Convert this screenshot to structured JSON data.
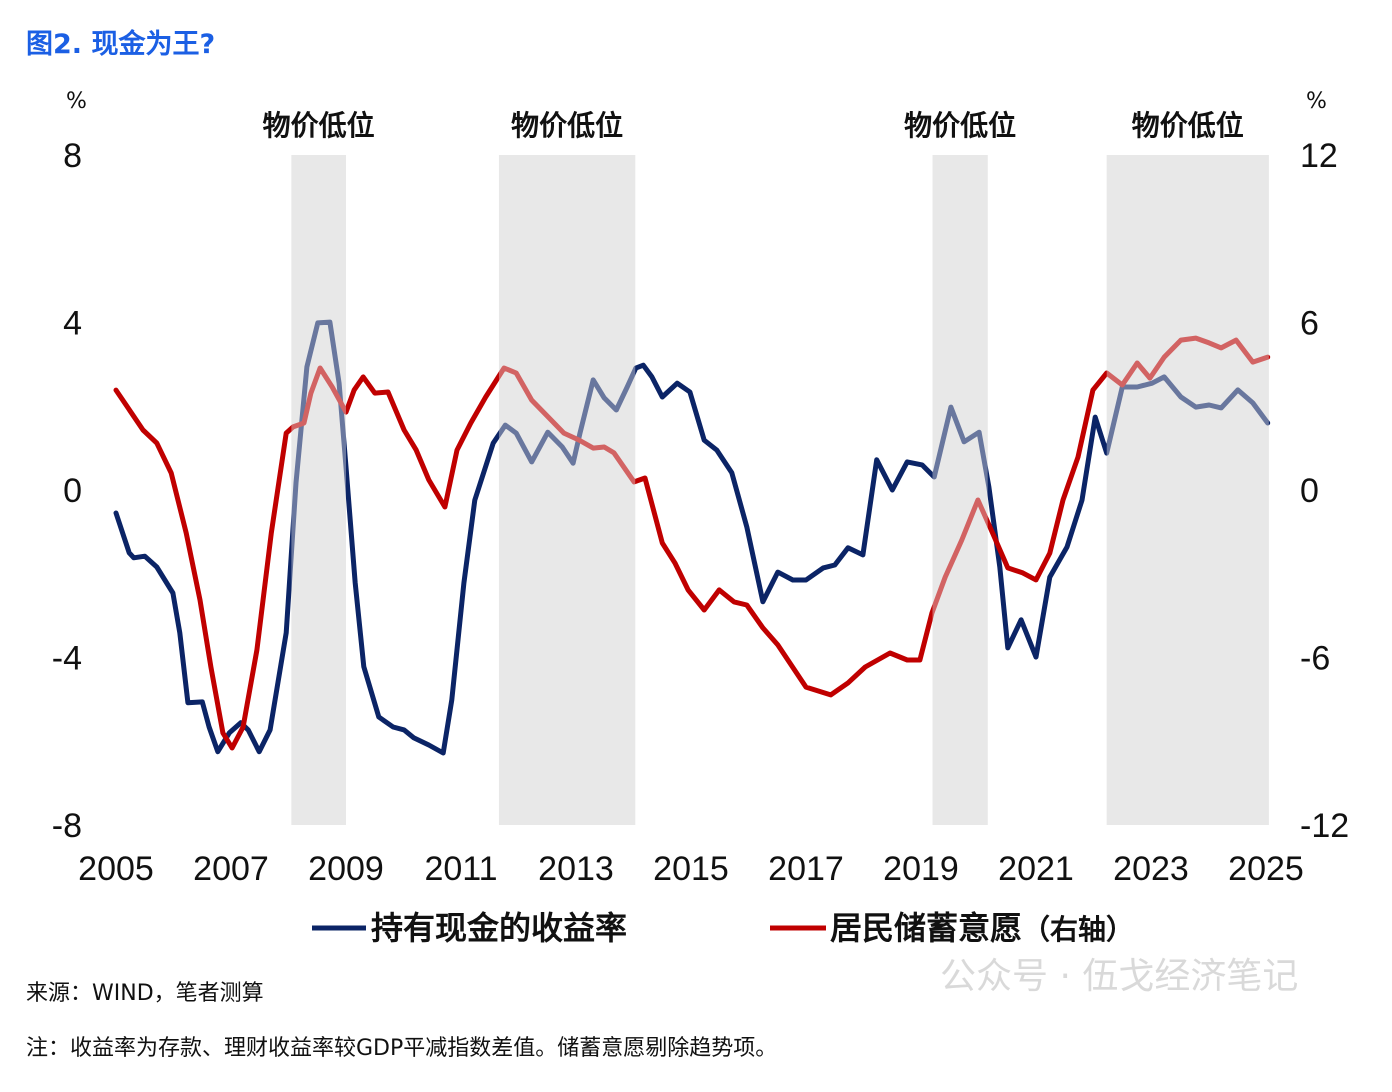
{
  "title": "图2. 现金为王?",
  "colors": {
    "title": "#1b5fe4",
    "blue": "#0b2466",
    "red": "#c00000",
    "band": "#e6e6e6"
  },
  "chart_data": {
    "type": "line",
    "title": "图2. 现金为王?",
    "left_axis": {
      "unit": "%",
      "ylim": [
        -8,
        8
      ],
      "ticks": [
        8,
        4,
        0,
        -4,
        -8
      ],
      "tick_labels": [
        "8",
        "4",
        "0",
        "-4",
        "-8"
      ]
    },
    "right_axis": {
      "unit": "%",
      "ylim": [
        -12,
        12
      ],
      "ticks": [
        12,
        6,
        0,
        -6,
        -12
      ],
      "tick_labels": [
        "12",
        "6",
        "0",
        "-6",
        "-12"
      ]
    },
    "x_axis": {
      "xlim": [
        2005,
        2025
      ],
      "ticks": [
        2005,
        2007,
        2009,
        2011,
        2013,
        2015,
        2017,
        2019,
        2021,
        2023,
        2025
      ],
      "tick_labels": [
        "2005",
        "2007",
        "2009",
        "2011",
        "2013",
        "2015",
        "2017",
        "2019",
        "2021",
        "2023",
        "2025"
      ]
    },
    "grid": false,
    "legend_position": "bottom",
    "shaded_periods": [
      {
        "label": "物价低位",
        "start": 2008.05,
        "end": 2009.0
      },
      {
        "label": "物价低位",
        "start": 2011.66,
        "end": 2014.03
      },
      {
        "label": "物价低位",
        "start": 2019.2,
        "end": 2020.16
      },
      {
        "label": "物价低位",
        "start": 2022.23,
        "end": 2025.05
      }
    ],
    "series": [
      {
        "name": "持有现金的收益率",
        "axis": "left",
        "x": [
          2005.0,
          2005.23,
          2005.31,
          2005.5,
          2005.71,
          2005.99,
          2006.11,
          2006.25,
          2006.5,
          2006.62,
          2006.77,
          2006.97,
          2007.17,
          2007.3,
          2007.49,
          2007.68,
          2007.96,
          2008.13,
          2008.32,
          2008.51,
          2008.72,
          2008.88,
          2009.0,
          2009.16,
          2009.31,
          2009.57,
          2009.82,
          2010.01,
          2010.18,
          2010.44,
          2010.69,
          2010.84,
          2011.05,
          2011.24,
          2011.56,
          2011.77,
          2011.96,
          2012.23,
          2012.51,
          2012.76,
          2012.95,
          2013.07,
          2013.3,
          2013.49,
          2013.7,
          2013.89,
          2014.04,
          2014.17,
          2014.32,
          2014.5,
          2014.76,
          2014.98,
          2015.23,
          2015.45,
          2015.71,
          2015.97,
          2016.25,
          2016.51,
          2016.77,
          2017.0,
          2017.3,
          2017.5,
          2017.73,
          2017.99,
          2018.23,
          2018.5,
          2018.76,
          2019.02,
          2019.23,
          2019.52,
          2019.75,
          2020.01,
          2020.18,
          2020.37,
          2020.51,
          2020.74,
          2021.0,
          2021.24,
          2021.54,
          2021.8,
          2022.03,
          2022.23,
          2022.5,
          2022.76,
          2023.02,
          2023.23,
          2023.52,
          2023.78,
          2024.01,
          2024.22,
          2024.51,
          2024.77,
          2025.03
        ],
        "values": [
          -0.55,
          -1.5,
          -1.62,
          -1.58,
          -1.84,
          -2.46,
          -3.41,
          -5.08,
          -5.06,
          -5.66,
          -6.25,
          -5.8,
          -5.56,
          -5.73,
          -6.25,
          -5.73,
          -3.41,
          0.17,
          2.94,
          3.99,
          4.01,
          2.55,
          0.55,
          -2.22,
          -4.22,
          -5.42,
          -5.66,
          -5.73,
          -5.92,
          -6.09,
          -6.28,
          -5.01,
          -2.22,
          -0.24,
          1.12,
          1.55,
          1.36,
          0.67,
          1.38,
          1.03,
          0.64,
          1.36,
          2.63,
          2.2,
          1.91,
          2.46,
          2.91,
          2.98,
          2.7,
          2.22,
          2.55,
          2.34,
          1.19,
          0.95,
          0.41,
          -0.88,
          -2.67,
          -1.96,
          -2.15,
          -2.15,
          -1.86,
          -1.79,
          -1.38,
          -1.55,
          0.72,
          0.0,
          0.67,
          0.6,
          0.31,
          1.98,
          1.15,
          1.38,
          0.07,
          -1.84,
          -3.77,
          -3.1,
          -3.99,
          -2.08,
          -1.36,
          -0.24,
          1.74,
          0.88,
          2.46,
          2.46,
          2.55,
          2.7,
          2.22,
          1.98,
          2.03,
          1.96,
          2.39,
          2.08,
          1.6
        ]
      },
      {
        "name": "居民储蓄意愿（右轴）",
        "axis": "right",
        "x": [
          2005.0,
          2005.47,
          2005.71,
          2005.96,
          2006.22,
          2006.46,
          2006.65,
          2006.86,
          2007.02,
          2007.21,
          2007.45,
          2007.7,
          2007.96,
          2008.08,
          2008.27,
          2008.39,
          2008.55,
          2008.76,
          2009.0,
          2009.14,
          2009.3,
          2009.5,
          2009.73,
          2010.01,
          2010.22,
          2010.44,
          2010.72,
          2010.93,
          2011.17,
          2011.43,
          2011.75,
          2011.96,
          2012.23,
          2012.48,
          2012.79,
          2013.05,
          2013.3,
          2013.49,
          2013.66,
          2014.01,
          2014.2,
          2014.5,
          2014.72,
          2014.95,
          2015.23,
          2015.49,
          2015.75,
          2015.97,
          2016.25,
          2016.51,
          2017.0,
          2017.43,
          2017.73,
          2018.03,
          2018.46,
          2018.76,
          2018.98,
          2019.19,
          2019.42,
          2019.71,
          2019.99,
          2020.22,
          2020.51,
          2020.77,
          2021.0,
          2021.24,
          2021.47,
          2021.73,
          2021.99,
          2022.23,
          2022.5,
          2022.76,
          2022.98,
          2023.23,
          2023.52,
          2023.78,
          2024.01,
          2024.22,
          2024.48,
          2024.77,
          2025.03
        ],
        "values": [
          3.58,
          2.15,
          1.68,
          0.61,
          -1.54,
          -3.94,
          -6.34,
          -8.7,
          -9.24,
          -8.49,
          -5.73,
          -1.54,
          2.04,
          2.26,
          2.4,
          3.47,
          4.37,
          3.69,
          2.79,
          3.58,
          4.05,
          3.47,
          3.51,
          2.15,
          1.43,
          0.36,
          -0.61,
          1.43,
          2.4,
          3.33,
          4.37,
          4.19,
          3.22,
          2.69,
          2.04,
          1.79,
          1.5,
          1.54,
          1.33,
          0.29,
          0.43,
          -1.9,
          -2.61,
          -3.58,
          -4.3,
          -3.58,
          -4.01,
          -4.12,
          -4.94,
          -5.55,
          -7.06,
          -7.34,
          -6.91,
          -6.34,
          -5.84,
          -6.09,
          -6.09,
          -4.41,
          -3.12,
          -1.79,
          -0.36,
          -1.43,
          -2.79,
          -2.97,
          -3.22,
          -2.26,
          -0.36,
          1.18,
          3.58,
          4.19,
          3.76,
          4.55,
          4.01,
          4.76,
          5.37,
          5.44,
          5.27,
          5.09,
          5.37,
          4.58,
          4.76
        ]
      }
    ]
  },
  "legend": {
    "blue_label": "持有现金的收益率",
    "red_label_main": "居民储蓄意愿",
    "red_label_suffix": "（右轴）"
  },
  "watermark": "公众号 · 伍戈经济笔记",
  "footer": {
    "source": "来源：WIND，笔者测算",
    "note": "注：收益率为存款、理财收益率较GDP平减指数差值。储蓄意愿剔除趋势项。"
  }
}
